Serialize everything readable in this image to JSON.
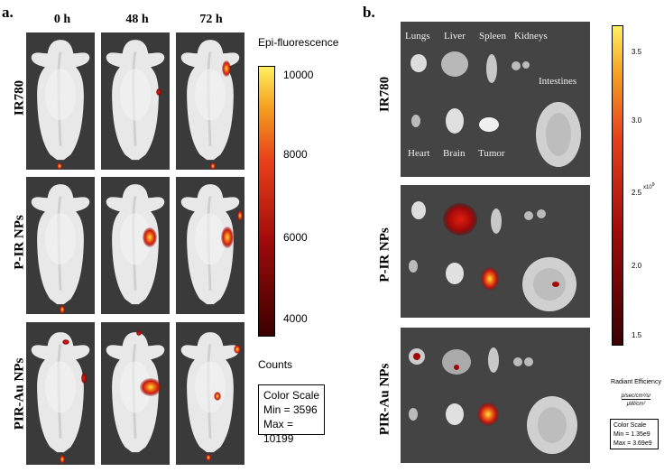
{
  "panel_a": {
    "label": "a.",
    "columns": [
      "0 h",
      "48 h",
      "72 h"
    ],
    "rows": [
      "IR780",
      "P-IR NPs",
      "PIR-Au NPs"
    ],
    "scale": {
      "title": "Epi-fluorescence",
      "ticks": [
        "10000",
        "8000",
        "6000",
        "4000"
      ],
      "unit": "Counts",
      "box_title": "Color Scale",
      "box_min": "Min = 3596",
      "box_max": "Max = 10199"
    }
  },
  "panel_b": {
    "label": "b.",
    "rows": [
      "IR780",
      "P-IR NPs",
      "PIR-Au NPs"
    ],
    "organs": {
      "lungs": "Lungs",
      "liver": "Liver",
      "spleen": "Spleen",
      "kidneys": "Kidneys",
      "intestines": "Intestines",
      "heart": "Heart",
      "brain": "Brain",
      "tumor": "Tumor"
    },
    "scale": {
      "ticks": [
        "3.5",
        "3.0",
        "2.5",
        "2.0",
        "1.5"
      ],
      "exponent": "x10",
      "exponent_power": "9",
      "title": "Radiant Efficiency",
      "unit_num": "p/sec/cm²/sr",
      "unit_den": "μW/cm²",
      "box_title": "Color Scale",
      "box_min": "Min = 1.35e9",
      "box_max": "Max = 3.69e9"
    }
  },
  "colors": {
    "background_dark": "#3a3a3a",
    "mouse": "#e6e6e6",
    "signal_hot": "#ffd200",
    "signal_mid": "#e23a10",
    "signal_low": "#7a0a0a"
  }
}
